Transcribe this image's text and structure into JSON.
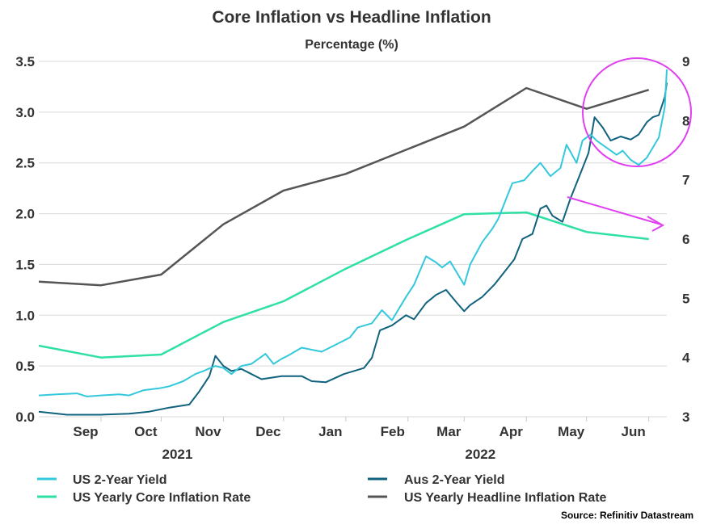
{
  "chart_data": {
    "type": "line",
    "title": "Core Inflation vs Headline Inflation",
    "subtitle": "Percentage (%)",
    "source": "Source: Refinitiv Datastream",
    "x_time_range": [
      "2021-08-01",
      "2022-06-10"
    ],
    "month_labels": [
      {
        "label": "Sep",
        "date": "2021-09-01"
      },
      {
        "label": "Oct",
        "date": "2021-10-01"
      },
      {
        "label": "Nov",
        "date": "2021-11-01"
      },
      {
        "label": "Dec",
        "date": "2021-12-01"
      },
      {
        "label": "Jan",
        "date": "2022-01-01"
      },
      {
        "label": "Feb",
        "date": "2022-02-01"
      },
      {
        "label": "Mar",
        "date": "2022-03-01"
      },
      {
        "label": "Apr",
        "date": "2022-04-01"
      },
      {
        "label": "May",
        "date": "2022-05-01"
      },
      {
        "label": "Jun",
        "date": "2022-06-01"
      }
    ],
    "year_labels": [
      {
        "label": "2021",
        "date": "2021-10-01"
      },
      {
        "label": "2022",
        "date": "2022-03-01"
      }
    ],
    "y_left": {
      "min": 0,
      "max": 3.5,
      "ticks": [
        "0.0",
        "0.5",
        "1.0",
        "1.5",
        "2.0",
        "2.5",
        "3.0",
        "3.5"
      ]
    },
    "y_right": {
      "min": 3,
      "max": 9,
      "ticks": [
        "3",
        "4",
        "5",
        "6",
        "7",
        "8",
        "9"
      ]
    },
    "series": [
      {
        "name": "US 2-Year Yield",
        "color": "#33c8dc",
        "axis": "left",
        "points": [
          [
            "2021-08-01",
            0.21
          ],
          [
            "2021-08-10",
            0.22
          ],
          [
            "2021-08-20",
            0.23
          ],
          [
            "2021-08-25",
            0.2
          ],
          [
            "2021-09-01",
            0.21
          ],
          [
            "2021-09-10",
            0.22
          ],
          [
            "2021-09-15",
            0.21
          ],
          [
            "2021-09-22",
            0.26
          ],
          [
            "2021-09-30",
            0.28
          ],
          [
            "2021-10-05",
            0.3
          ],
          [
            "2021-10-12",
            0.35
          ],
          [
            "2021-10-18",
            0.42
          ],
          [
            "2021-10-22",
            0.45
          ],
          [
            "2021-10-28",
            0.5
          ],
          [
            "2021-11-01",
            0.48
          ],
          [
            "2021-11-05",
            0.42
          ],
          [
            "2021-11-10",
            0.5
          ],
          [
            "2021-11-15",
            0.52
          ],
          [
            "2021-11-22",
            0.62
          ],
          [
            "2021-11-26",
            0.52
          ],
          [
            "2021-11-30",
            0.57
          ],
          [
            "2021-12-03",
            0.6
          ],
          [
            "2021-12-10",
            0.68
          ],
          [
            "2021-12-15",
            0.66
          ],
          [
            "2021-12-20",
            0.64
          ],
          [
            "2021-12-28",
            0.72
          ],
          [
            "2022-01-03",
            0.78
          ],
          [
            "2022-01-07",
            0.88
          ],
          [
            "2022-01-14",
            0.92
          ],
          [
            "2022-01-19",
            1.05
          ],
          [
            "2022-01-24",
            0.95
          ],
          [
            "2022-01-31",
            1.18
          ],
          [
            "2022-02-04",
            1.3
          ],
          [
            "2022-02-10",
            1.58
          ],
          [
            "2022-02-15",
            1.52
          ],
          [
            "2022-02-18",
            1.47
          ],
          [
            "2022-02-22",
            1.53
          ],
          [
            "2022-03-01",
            1.3
          ],
          [
            "2022-03-04",
            1.5
          ],
          [
            "2022-03-10",
            1.72
          ],
          [
            "2022-03-15",
            1.85
          ],
          [
            "2022-03-18",
            1.95
          ],
          [
            "2022-03-22",
            2.15
          ],
          [
            "2022-03-25",
            2.3
          ],
          [
            "2022-03-31",
            2.33
          ],
          [
            "2022-04-04",
            2.42
          ],
          [
            "2022-04-08",
            2.5
          ],
          [
            "2022-04-13",
            2.37
          ],
          [
            "2022-04-18",
            2.45
          ],
          [
            "2022-04-21",
            2.68
          ],
          [
            "2022-04-26",
            2.5
          ],
          [
            "2022-04-29",
            2.72
          ],
          [
            "2022-05-03",
            2.78
          ],
          [
            "2022-05-06",
            2.72
          ],
          [
            "2022-05-11",
            2.65
          ],
          [
            "2022-05-16",
            2.58
          ],
          [
            "2022-05-19",
            2.62
          ],
          [
            "2022-05-23",
            2.53
          ],
          [
            "2022-05-27",
            2.48
          ],
          [
            "2022-05-31",
            2.55
          ],
          [
            "2022-06-03",
            2.65
          ],
          [
            "2022-06-06",
            2.75
          ],
          [
            "2022-06-09",
            3.05
          ],
          [
            "2022-06-10",
            3.42
          ]
        ]
      },
      {
        "name": "Aus 2-Year Yield",
        "color": "#10627e",
        "axis": "left",
        "points": [
          [
            "2021-08-01",
            0.05
          ],
          [
            "2021-08-15",
            0.02
          ],
          [
            "2021-09-01",
            0.02
          ],
          [
            "2021-09-15",
            0.03
          ],
          [
            "2021-09-25",
            0.05
          ],
          [
            "2021-10-05",
            0.09
          ],
          [
            "2021-10-15",
            0.12
          ],
          [
            "2021-10-20",
            0.25
          ],
          [
            "2021-10-25",
            0.4
          ],
          [
            "2021-10-28",
            0.6
          ],
          [
            "2021-11-01",
            0.5
          ],
          [
            "2021-11-05",
            0.45
          ],
          [
            "2021-11-10",
            0.47
          ],
          [
            "2021-11-15",
            0.42
          ],
          [
            "2021-11-20",
            0.37
          ],
          [
            "2021-11-30",
            0.4
          ],
          [
            "2021-12-05",
            0.4
          ],
          [
            "2021-12-10",
            0.4
          ],
          [
            "2021-12-15",
            0.35
          ],
          [
            "2021-12-22",
            0.34
          ],
          [
            "2021-12-31",
            0.42
          ],
          [
            "2022-01-05",
            0.45
          ],
          [
            "2022-01-10",
            0.48
          ],
          [
            "2022-01-14",
            0.58
          ],
          [
            "2022-01-18",
            0.85
          ],
          [
            "2022-01-24",
            0.9
          ],
          [
            "2022-01-31",
            1.0
          ],
          [
            "2022-02-04",
            0.96
          ],
          [
            "2022-02-10",
            1.12
          ],
          [
            "2022-02-15",
            1.2
          ],
          [
            "2022-02-20",
            1.25
          ],
          [
            "2022-02-25",
            1.13
          ],
          [
            "2022-03-01",
            1.04
          ],
          [
            "2022-03-04",
            1.1
          ],
          [
            "2022-03-10",
            1.18
          ],
          [
            "2022-03-16",
            1.3
          ],
          [
            "2022-03-22",
            1.45
          ],
          [
            "2022-03-26",
            1.55
          ],
          [
            "2022-03-30",
            1.75
          ],
          [
            "2022-04-04",
            1.8
          ],
          [
            "2022-04-08",
            2.05
          ],
          [
            "2022-04-11",
            2.08
          ],
          [
            "2022-04-14",
            1.98
          ],
          [
            "2022-04-19",
            1.92
          ],
          [
            "2022-04-23",
            2.15
          ],
          [
            "2022-04-27",
            2.35
          ],
          [
            "2022-05-02",
            2.6
          ],
          [
            "2022-05-05",
            2.95
          ],
          [
            "2022-05-09",
            2.85
          ],
          [
            "2022-05-13",
            2.72
          ],
          [
            "2022-05-18",
            2.76
          ],
          [
            "2022-05-23",
            2.73
          ],
          [
            "2022-05-27",
            2.78
          ],
          [
            "2022-05-31",
            2.9
          ],
          [
            "2022-06-03",
            2.95
          ],
          [
            "2022-06-06",
            2.97
          ],
          [
            "2022-06-09",
            3.15
          ],
          [
            "2022-06-10",
            3.29
          ]
        ]
      },
      {
        "name": "US Yearly Core Inflation Rate",
        "color": "#2fe0a6",
        "axis": "right",
        "points": [
          [
            "2021-08-01",
            4.2
          ],
          [
            "2021-09-01",
            4.0
          ],
          [
            "2021-10-01",
            4.05
          ],
          [
            "2021-11-01",
            4.6
          ],
          [
            "2021-12-01",
            4.95
          ],
          [
            "2022-01-01",
            5.5
          ],
          [
            "2022-02-01",
            6.0
          ],
          [
            "2022-03-01",
            6.42
          ],
          [
            "2022-04-01",
            6.45
          ],
          [
            "2022-05-01",
            6.12
          ],
          [
            "2022-06-01",
            6.0
          ]
        ]
      },
      {
        "name": "US Yearly Headline Inflation Rate",
        "color": "#555555",
        "axis": "right",
        "points": [
          [
            "2021-08-01",
            5.28
          ],
          [
            "2021-09-01",
            5.22
          ],
          [
            "2021-10-01",
            5.4
          ],
          [
            "2021-11-01",
            6.25
          ],
          [
            "2021-12-01",
            6.82
          ],
          [
            "2022-01-01",
            7.1
          ],
          [
            "2022-02-01",
            7.52
          ],
          [
            "2022-03-01",
            7.9
          ],
          [
            "2022-04-01",
            8.55
          ],
          [
            "2022-05-01",
            8.2
          ],
          [
            "2022-06-01",
            8.52
          ]
        ]
      }
    ],
    "annotations": [
      {
        "type": "circle",
        "color": "#e040f0",
        "description": "highlight around recent yield and headline inflation"
      },
      {
        "type": "arrow",
        "color": "#e040f0",
        "description": "downward trend in core inflation"
      }
    ],
    "legend": [
      {
        "label": "US 2-Year Yield",
        "color": "#33c8dc"
      },
      {
        "label": "Aus 2-Year Yield",
        "color": "#10627e"
      },
      {
        "label": "US Yearly Core Inflation Rate",
        "color": "#2fe0a6"
      },
      {
        "label": "US Yearly Headline Inflation Rate",
        "color": "#555555"
      }
    ]
  }
}
